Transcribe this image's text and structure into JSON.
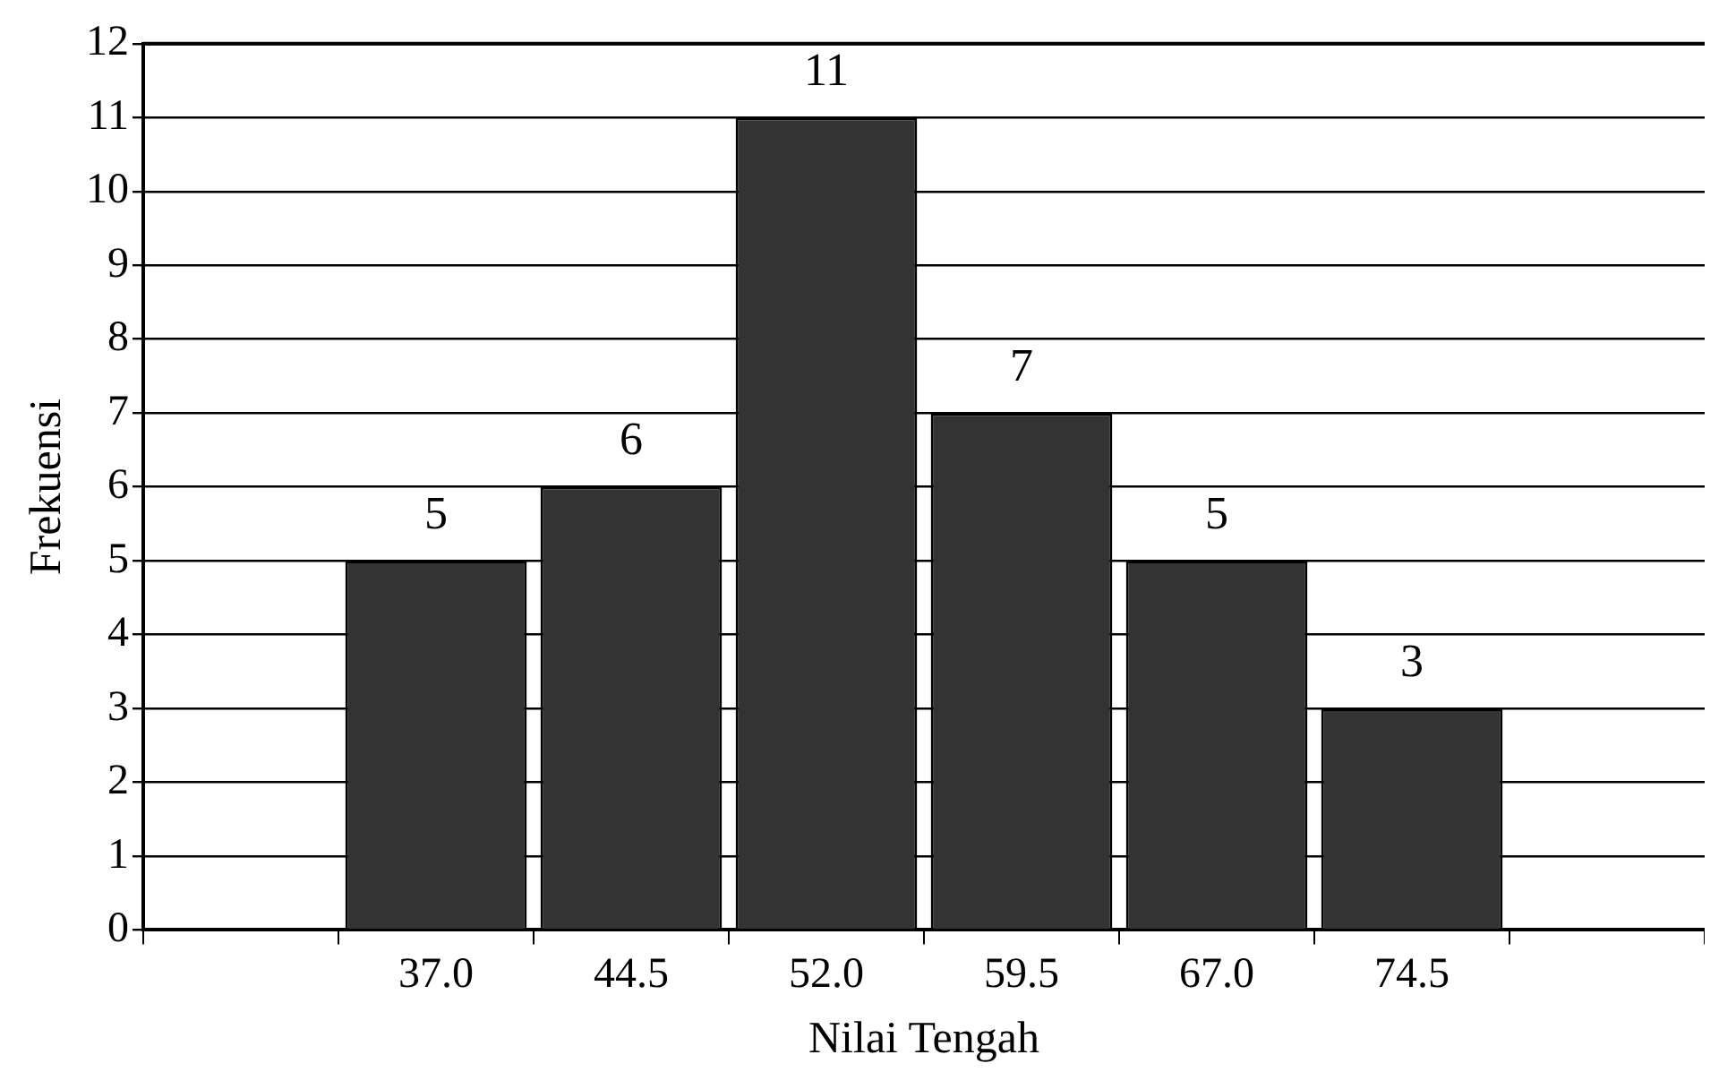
{
  "chart_data": {
    "type": "bar",
    "xlabel": "Nilai Tengah",
    "ylabel": "Frekuensi",
    "categories": [
      null,
      "37.0",
      "44.5",
      "52.0",
      "59.5",
      "67.0",
      "74.5",
      null
    ],
    "values": [
      null,
      5,
      6,
      11,
      7,
      5,
      3,
      null
    ],
    "color": "#333333",
    "ylim": [
      0,
      12
    ],
    "yticks": [
      0,
      1,
      2,
      3,
      4,
      5,
      6,
      7,
      8,
      9,
      10,
      11,
      12
    ],
    "grid": "y",
    "data_labels": true,
    "legend": false
  }
}
